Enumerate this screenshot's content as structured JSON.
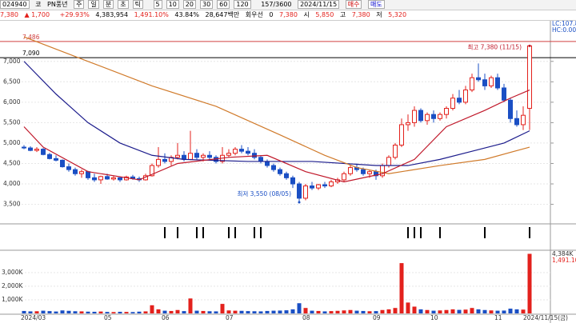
{
  "toolbar": {
    "code": "024940",
    "market": "코",
    "name": "PN풍년",
    "periods": [
      "주",
      "일",
      "분",
      "초",
      "틱"
    ],
    "intervals": [
      "5",
      "10",
      "20",
      "30",
      "60",
      "120"
    ],
    "count": "157/3600",
    "date": "2024/11/15",
    "buy": "매수",
    "sell": "매도"
  },
  "quote": {
    "price": "7,380",
    "change": "1,700",
    "rate": "+29.93%",
    "volume": "4,383,954",
    "vol_rate": "1,491.10%",
    "turnover": "43.84%",
    "amount": "28,647백만",
    "pref_label": "회우선",
    "pref": "0",
    "last": "7,380",
    "open_label": "시",
    "open": "5,850",
    "high_label": "고",
    "high": "7,380",
    "low_label": "저",
    "low": "5,320"
  },
  "chart_data": {
    "type": "candlestick",
    "categories": [
      "2024/03",
      null,
      null,
      null,
      null,
      null,
      null,
      null,
      null,
      null,
      null,
      null,
      null,
      "05",
      null,
      null,
      null,
      null,
      null,
      null,
      null,
      null,
      "06",
      null,
      null,
      null,
      null,
      null,
      null,
      null,
      null,
      null,
      "07",
      null,
      null,
      null,
      null,
      null,
      null,
      null,
      null,
      null,
      null,
      null,
      "08",
      null,
      null,
      null,
      null,
      null,
      null,
      null,
      null,
      null,
      null,
      "09",
      null,
      null,
      null,
      null,
      null,
      null,
      null,
      null,
      "10",
      null,
      null,
      null,
      null,
      null,
      null,
      null,
      null,
      null,
      "11",
      null,
      null,
      null,
      null,
      "2024/11/15(금)"
    ],
    "ohlc": [
      [
        4900,
        4950,
        4850,
        4880
      ],
      [
        4880,
        4920,
        4800,
        4820
      ],
      [
        4820,
        4900,
        4780,
        4850
      ],
      [
        4850,
        4880,
        4700,
        4720
      ],
      [
        4720,
        4760,
        4600,
        4620
      ],
      [
        4620,
        4700,
        4550,
        4580
      ],
      [
        4580,
        4600,
        4400,
        4420
      ],
      [
        4420,
        4500,
        4300,
        4350
      ],
      [
        4350,
        4400,
        4200,
        4250
      ],
      [
        4250,
        4350,
        4150,
        4300
      ],
      [
        4300,
        4320,
        4100,
        4150
      ],
      [
        4150,
        4250,
        4050,
        4100
      ],
      [
        4100,
        4200,
        4000,
        4180
      ],
      [
        4180,
        4250,
        4100,
        4120
      ],
      [
        4120,
        4200,
        4080,
        4150
      ],
      [
        4150,
        4180,
        4050,
        4100
      ],
      [
        4100,
        4200,
        4080,
        4170
      ],
      [
        4170,
        4220,
        4100,
        4130
      ],
      [
        4130,
        4180,
        4050,
        4100
      ],
      [
        4100,
        4250,
        4080,
        4200
      ],
      [
        4200,
        4500,
        4180,
        4450
      ],
      [
        4450,
        4900,
        4400,
        4600
      ],
      [
        4600,
        4750,
        4500,
        4550
      ],
      [
        4550,
        4700,
        4450,
        4650
      ],
      [
        4650,
        5000,
        4600,
        4700
      ],
      [
        4700,
        4800,
        4550,
        4600
      ],
      [
        4600,
        5300,
        4580,
        4750
      ],
      [
        4750,
        4850,
        4600,
        4650
      ],
      [
        4650,
        4750,
        4550,
        4700
      ],
      [
        4700,
        4800,
        4600,
        4650
      ],
      [
        4650,
        4700,
        4500,
        4550
      ],
      [
        4550,
        4900,
        4500,
        4700
      ],
      [
        4700,
        4850,
        4650,
        4750
      ],
      [
        4750,
        4900,
        4700,
        4850
      ],
      [
        4850,
        4950,
        4750,
        4800
      ],
      [
        4800,
        4900,
        4700,
        4750
      ],
      [
        4750,
        4850,
        4600,
        4650
      ],
      [
        4650,
        4700,
        4500,
        4550
      ],
      [
        4550,
        4600,
        4400,
        4450
      ],
      [
        4450,
        4500,
        4300,
        4350
      ],
      [
        4350,
        4400,
        4200,
        4250
      ],
      [
        4250,
        4300,
        4100,
        4150
      ],
      [
        4150,
        4200,
        3900,
        4000
      ],
      [
        4000,
        4050,
        3550,
        3650
      ],
      [
        3650,
        4000,
        3600,
        3950
      ],
      [
        3950,
        4050,
        3850,
        3900
      ],
      [
        3900,
        4000,
        3850,
        3980
      ],
      [
        3980,
        4050,
        3900,
        3950
      ],
      [
        3950,
        4100,
        3920,
        4050
      ],
      [
        4050,
        4150,
        4000,
        4100
      ],
      [
        4100,
        4300,
        4050,
        4250
      ],
      [
        4250,
        4450,
        4200,
        4400
      ],
      [
        4400,
        4500,
        4300,
        4350
      ],
      [
        4350,
        4400,
        4200,
        4250
      ],
      [
        4250,
        4350,
        4150,
        4300
      ],
      [
        4300,
        4350,
        4100,
        4200
      ],
      [
        4200,
        4500,
        4150,
        4450
      ],
      [
        4450,
        4700,
        4400,
        4650
      ],
      [
        4650,
        5000,
        4600,
        4950
      ],
      [
        4950,
        5600,
        4900,
        5450
      ],
      [
        5450,
        5700,
        5300,
        5500
      ],
      [
        5500,
        5900,
        5400,
        5800
      ],
      [
        5800,
        5850,
        5500,
        5550
      ],
      [
        5550,
        5750,
        5450,
        5700
      ],
      [
        5700,
        5800,
        5500,
        5600
      ],
      [
        5600,
        5750,
        5550,
        5700
      ],
      [
        5700,
        5900,
        5600,
        5850
      ],
      [
        5850,
        6200,
        5800,
        6100
      ],
      [
        6100,
        6300,
        5950,
        6000
      ],
      [
        6000,
        6400,
        5950,
        6300
      ],
      [
        6300,
        6700,
        6250,
        6600
      ],
      [
        6600,
        6950,
        6500,
        6550
      ],
      [
        6550,
        6700,
        6300,
        6400
      ],
      [
        6400,
        6650,
        6350,
        6600
      ],
      [
        6600,
        6700,
        6300,
        6350
      ],
      [
        6350,
        6450,
        6000,
        6050
      ],
      [
        6050,
        6100,
        5500,
        5600
      ],
      [
        5600,
        5800,
        5400,
        5450
      ],
      [
        5450,
        5900,
        5320,
        5680
      ],
      [
        5850,
        7380,
        5320,
        7380
      ]
    ],
    "volume": [
      180,
      150,
      160,
      200,
      170,
      140,
      220,
      190,
      160,
      150,
      130,
      120,
      140,
      110,
      100,
      120,
      110,
      100,
      130,
      150,
      600,
      300,
      200,
      180,
      250,
      170,
      1100,
      200,
      180,
      160,
      150,
      700,
      220,
      200,
      190,
      170,
      160,
      150,
      180,
      200,
      210,
      230,
      300,
      750,
      400,
      200,
      180,
      150,
      170,
      190,
      220,
      250,
      200,
      180,
      160,
      170,
      250,
      300,
      400,
      3700,
      800,
      500,
      300,
      250,
      200,
      220,
      250,
      300,
      260,
      280,
      400,
      300,
      250,
      220,
      200,
      210,
      350,
      300,
      280,
      4384
    ],
    "up_color": "#e3211c",
    "down_color": "#1a4fc4",
    "ylim": [
      3100,
      7700
    ],
    "yticks": [
      {
        "value": 3500,
        "label": "3,500"
      },
      {
        "value": 4000,
        "label": "4,000"
      },
      {
        "value": 4500,
        "label": "4,500"
      },
      {
        "value": 5000,
        "label": "5,000"
      },
      {
        "value": 5500,
        "label": "5,500"
      },
      {
        "value": 6000,
        "label": "6,000"
      },
      {
        "value": 6500,
        "label": "6,500"
      },
      {
        "value": 7000,
        "label": "7,000"
      }
    ],
    "volume_ylim": [
      0,
      4500
    ],
    "volume_ticks": [
      {
        "value": 1000,
        "label": "1,000K"
      },
      {
        "value": 2000,
        "label": "2,000K"
      },
      {
        "value": 3000,
        "label": "3,000K"
      }
    ],
    "lines": [
      {
        "color": "#1c1c8c",
        "x": [
          0,
          5,
          10,
          15,
          20,
          25,
          35,
          45,
          55,
          60,
          65,
          70,
          75,
          79
        ],
        "values": [
          7000,
          6200,
          5500,
          5000,
          4700,
          4600,
          4550,
          4550,
          4450,
          4450,
          4600,
          4800,
          5000,
          5300
        ]
      },
      {
        "color": "#d07a2a",
        "x": [
          0,
          10,
          20,
          30,
          40,
          47,
          52,
          57,
          65,
          72,
          79
        ],
        "values": [
          7600,
          7000,
          6400,
          5900,
          5200,
          4700,
          4400,
          4250,
          4450,
          4600,
          4900
        ]
      },
      {
        "color": "#c0182a",
        "x": [
          0,
          3,
          10,
          18,
          24,
          32,
          38,
          44,
          50,
          56,
          61,
          66,
          72,
          76,
          79
        ],
        "values": [
          5400,
          4900,
          4300,
          4100,
          4500,
          4650,
          4700,
          4300,
          4050,
          4250,
          4600,
          5400,
          5800,
          6100,
          6300
        ]
      }
    ],
    "ref_lines": [
      {
        "value": 7486,
        "label": "7,486",
        "color": "#d04040"
      },
      {
        "value": 7090,
        "label": "7,090",
        "color": "#000000"
      }
    ],
    "annotations": [
      {
        "text": "최고 7,380 (11/15)",
        "index": 79,
        "value": 7380,
        "color": "#c0182a"
      },
      {
        "text": "최저 3,550 (08/05)",
        "index": 43,
        "value": 3550,
        "color": "#1a4fc4"
      }
    ],
    "signals": [
      22,
      24,
      27,
      28,
      32,
      33,
      36,
      37,
      60,
      61,
      62,
      65,
      72,
      79
    ],
    "right_labels": [
      "LC:107.89%",
      "HC:0.00%"
    ],
    "volume_labels": [
      "4,384K",
      "1,491.10%"
    ]
  }
}
